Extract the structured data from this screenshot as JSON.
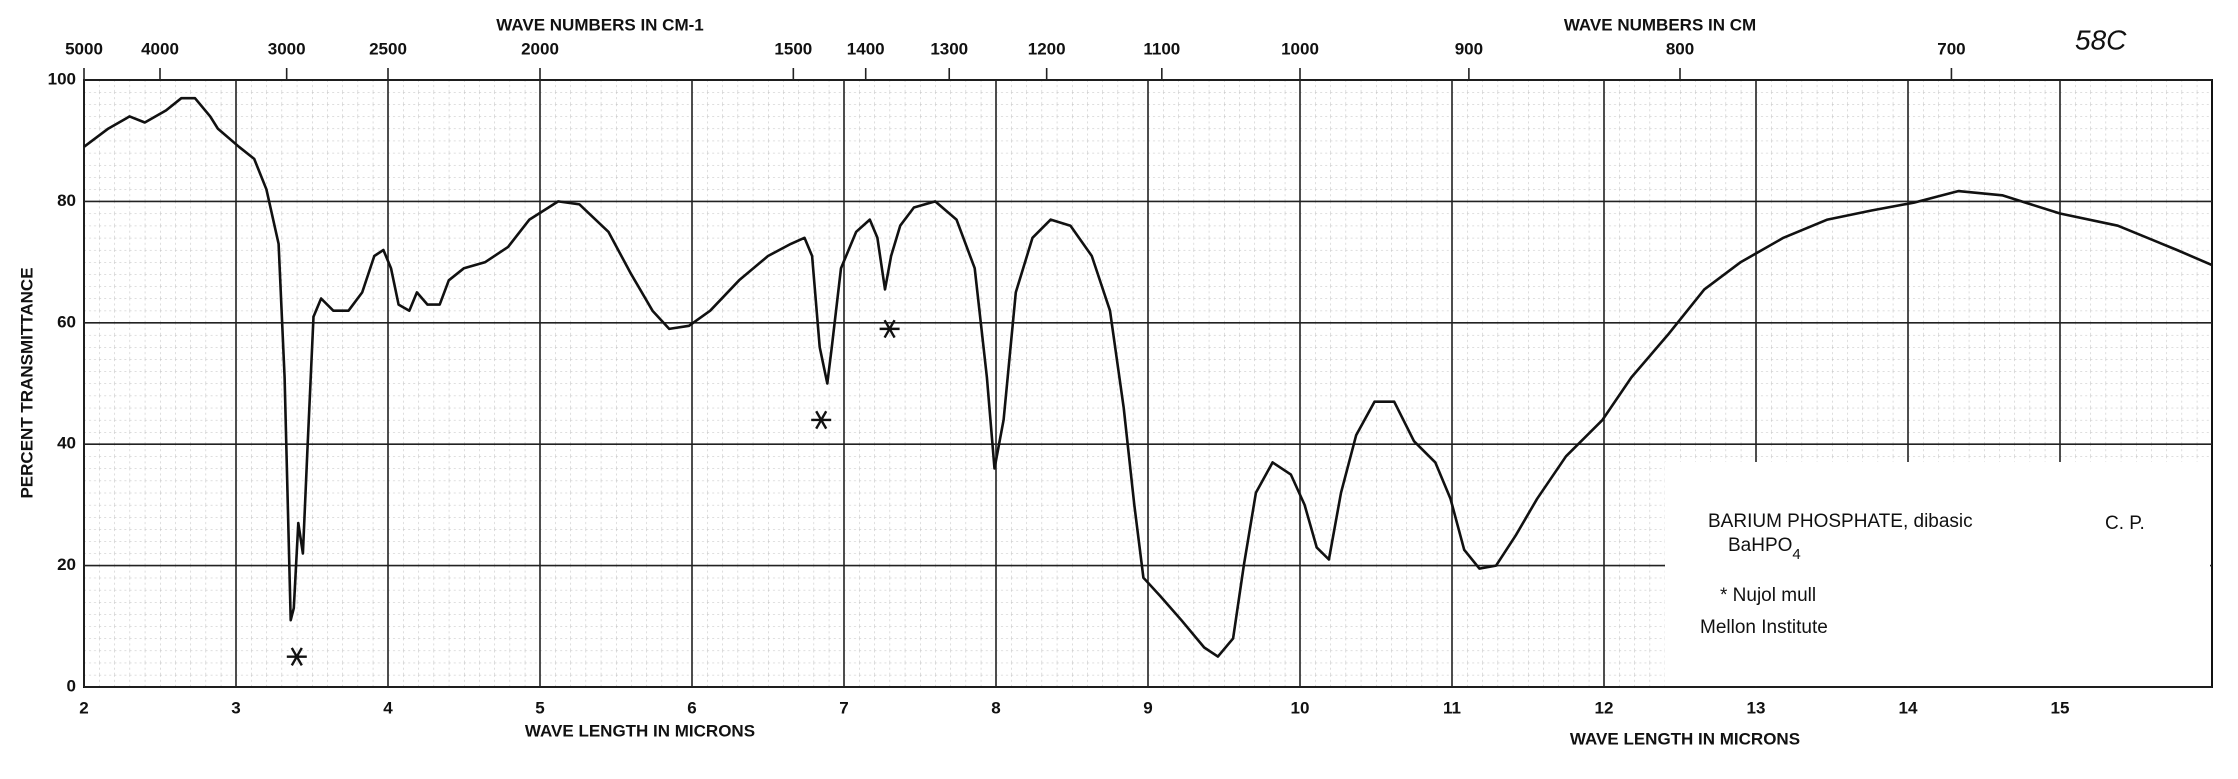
{
  "chart_data": {
    "type": "line",
    "title_top_left": "WAVE NUMBERS IN CM-1",
    "title_top_right": "WAVE NUMBERS IN CM",
    "xlabel_left": "WAVE LENGTH IN MICRONS",
    "xlabel_right": "WAVE LENGTH IN MICRONS",
    "ylabel": "PERCENT TRANSMITTANCE",
    "handwritten": "58C",
    "xlim": [
      2,
      16
    ],
    "ylim": [
      0,
      100
    ],
    "xticks": [
      2,
      3,
      4,
      5,
      6,
      7,
      8,
      9,
      10,
      11,
      12,
      13,
      14,
      15
    ],
    "x2ticks": [
      5000,
      4000,
      3000,
      2500,
      2000,
      1500,
      1400,
      1300,
      1200,
      1100,
      1000,
      900,
      800,
      700
    ],
    "yticks": [
      0,
      20,
      40,
      60,
      80,
      100
    ],
    "grid": true,
    "x": [
      2.0,
      2.16,
      2.3,
      2.4,
      2.54,
      2.64,
      2.73,
      2.83,
      2.88,
      3.02,
      3.12,
      3.2,
      3.28,
      3.32,
      3.36,
      3.38,
      3.41,
      3.44,
      3.47,
      3.51,
      3.56,
      3.64,
      3.74,
      3.83,
      3.91,
      3.97,
      4.02,
      4.07,
      4.14,
      4.19,
      4.26,
      4.34,
      4.4,
      4.5,
      4.64,
      4.79,
      4.93,
      5.12,
      5.26,
      5.45,
      5.6,
      5.74,
      5.85,
      5.98,
      6.12,
      6.31,
      6.5,
      6.65,
      6.74,
      6.79,
      6.84,
      6.89,
      6.92,
      6.98,
      7.08,
      7.17,
      7.22,
      7.27,
      7.31,
      7.37,
      7.46,
      7.6,
      7.74,
      7.86,
      7.94,
      7.99,
      8.05,
      8.13,
      8.24,
      8.36,
      8.49,
      8.63,
      8.75,
      8.84,
      8.91,
      8.97,
      9.08,
      9.22,
      9.37,
      9.46,
      9.56,
      9.63,
      9.71,
      9.82,
      9.94,
      10.03,
      10.11,
      10.19,
      10.27,
      10.37,
      10.49,
      10.62,
      10.75,
      10.89,
      10.99,
      11.08,
      11.18,
      11.29,
      11.42,
      11.56,
      11.75,
      11.99,
      12.18,
      12.42,
      12.66,
      12.9,
      13.18,
      13.47,
      13.76,
      14.04,
      14.33,
      14.62,
      15.0,
      15.38,
      15.77,
      16.0
    ],
    "series": [
      {
        "name": "BaHPO4",
        "color": "#111111",
        "values": [
          89,
          92,
          94,
          93,
          95,
          97,
          97,
          94,
          92,
          89,
          87,
          82,
          73,
          51,
          11,
          13,
          27,
          22,
          39,
          61,
          64,
          62,
          62,
          65,
          71,
          72,
          69,
          63,
          62,
          65,
          63,
          63,
          67,
          69,
          70,
          72.5,
          77,
          80,
          79.5,
          75,
          68,
          62,
          59,
          59.5,
          62,
          67,
          71,
          73,
          74,
          71,
          56,
          50,
          56,
          69,
          75,
          77,
          74,
          65.5,
          71,
          76,
          79,
          80,
          77,
          69,
          51,
          36,
          44,
          65,
          74,
          77,
          76,
          71,
          62,
          46,
          30,
          18,
          15,
          11,
          6.5,
          5,
          8,
          20,
          32,
          37,
          35,
          30,
          23,
          21,
          32,
          41.5,
          47,
          47,
          40.5,
          37,
          31,
          22.6,
          19.5,
          20,
          25,
          31,
          38,
          44,
          51,
          58,
          65.5,
          70,
          74,
          77,
          78.5,
          79.8,
          81.7,
          81,
          78,
          76,
          72,
          69.5
        ]
      }
    ],
    "markers": [
      {
        "x": 3.4,
        "y": 5
      },
      {
        "x": 6.85,
        "y": 44
      },
      {
        "x": 7.3,
        "y": 59
      }
    ],
    "box": {
      "name": "BARIUM PHOSPHATE, dibasic",
      "grade": "C. P.",
      "formula": "BaHPO",
      "formula_sub": "4",
      "mull": "* Nujol mull",
      "source": "Mellon Institute"
    }
  }
}
